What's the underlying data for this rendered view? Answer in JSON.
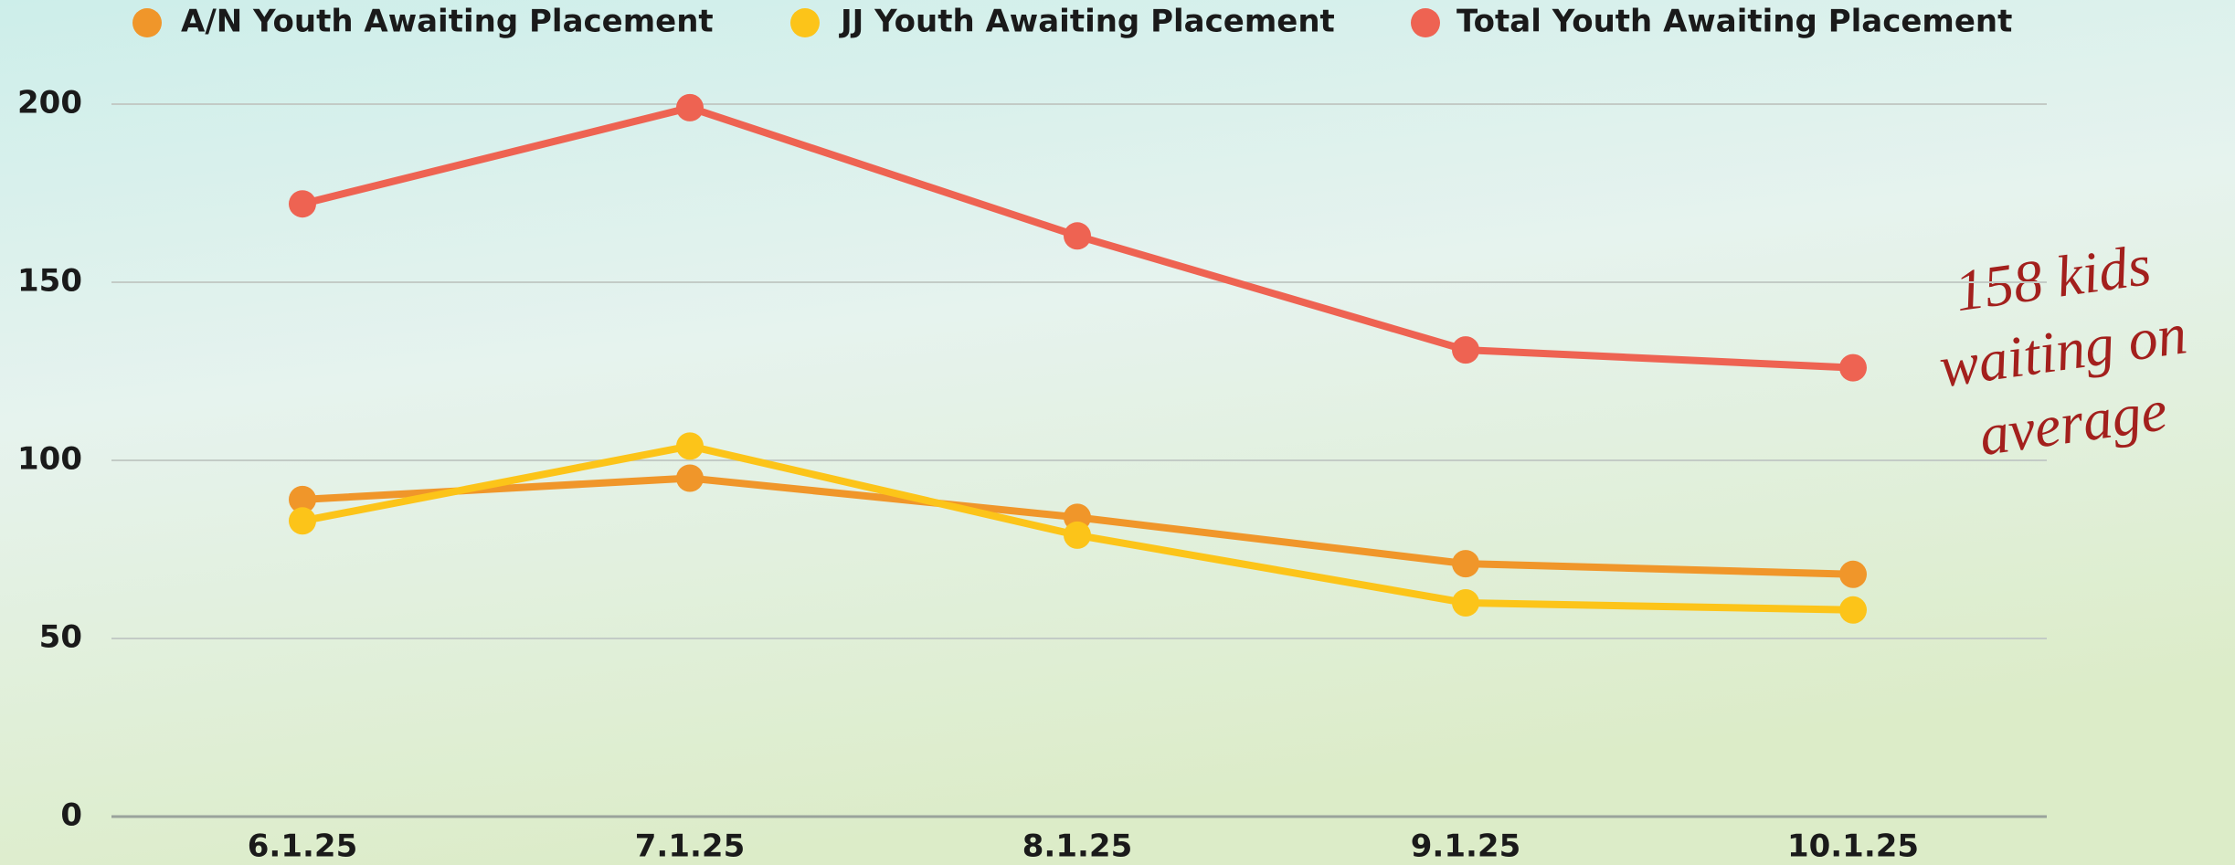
{
  "chart_data": {
    "type": "line",
    "categories": [
      "6.1.25",
      "7.1.25",
      "8.1.25",
      "9.1.25",
      "10.1.25"
    ],
    "series": [
      {
        "name": "A/N Youth Awaiting Placement",
        "color": "#f0962a",
        "values": [
          89,
          95,
          84,
          71,
          68
        ]
      },
      {
        "name": "JJ Youth Awaiting Placement",
        "color": "#fcc419",
        "values": [
          83,
          104,
          79,
          60,
          58
        ]
      },
      {
        "name": "Total Youth Awaiting Placement",
        "color": "#ee6352",
        "values": [
          172,
          199,
          163,
          131,
          126
        ]
      }
    ],
    "ylim": [
      0,
      200
    ],
    "yticks": [
      0,
      50,
      100,
      150,
      200
    ],
    "grid": true,
    "legend": "top",
    "annotation": [
      "158 kids",
      "waiting on",
      "average"
    ],
    "annotation_color": "#a3201d"
  }
}
